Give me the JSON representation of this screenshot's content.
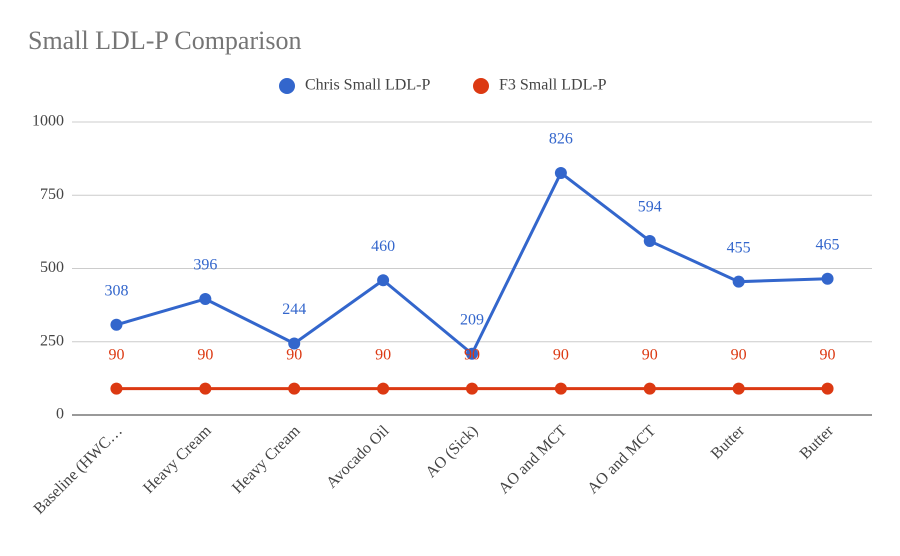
{
  "chart_data": {
    "type": "line",
    "title": "Small LDL-P Comparison",
    "categories": [
      "Baseline (HWC…",
      "Heavy Cream",
      "Heavy Cream",
      "Avocado Oil",
      "AO (Sick)",
      "AO and MCT",
      "AO and MCT",
      "Butter",
      "Butter"
    ],
    "series": [
      {
        "name": "Chris Small LDL-P",
        "color": "#3366cc",
        "values": [
          308,
          396,
          244,
          460,
          209,
          826,
          594,
          455,
          465
        ]
      },
      {
        "name": "F3 Small LDL-P",
        "color": "#dc3912",
        "values": [
          90,
          90,
          90,
          90,
          90,
          90,
          90,
          90,
          90
        ]
      }
    ],
    "ylim": [
      0,
      1000
    ],
    "yticks": [
      0,
      250,
      500,
      750,
      1000
    ],
    "grid": true,
    "legend": "top",
    "data_labels": true
  }
}
